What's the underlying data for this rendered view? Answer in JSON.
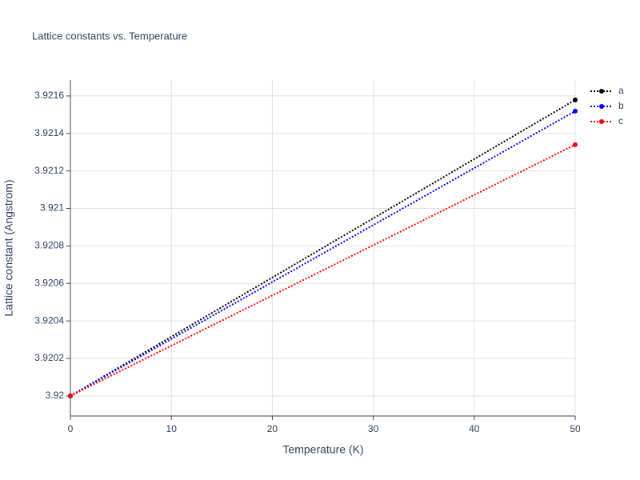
{
  "chart_data": {
    "type": "line",
    "title": "Lattice constants vs. Temperature",
    "x_label": "Temperature (K)",
    "y_label": "Lattice constant (Angstrom)",
    "x": [
      0,
      50
    ],
    "series": [
      {
        "name": "a",
        "color": "#000000",
        "values": [
          3.92,
          3.921579
        ]
      },
      {
        "name": "b",
        "color": "#0000ff",
        "values": [
          3.92,
          3.921519
        ]
      },
      {
        "name": "c",
        "color": "#ff0000",
        "values": [
          3.92,
          3.92134
        ]
      }
    ],
    "xlim": [
      0,
      50
    ],
    "xticks": [
      0,
      10,
      20,
      30,
      40,
      50
    ],
    "ylim": [
      3.919893,
      3.921685
    ],
    "yticks": [
      3.92,
      3.9202,
      3.9204,
      3.9206,
      3.9208,
      3.921,
      3.9212,
      3.9214,
      3.9216
    ],
    "grid": true,
    "legend": "right"
  }
}
